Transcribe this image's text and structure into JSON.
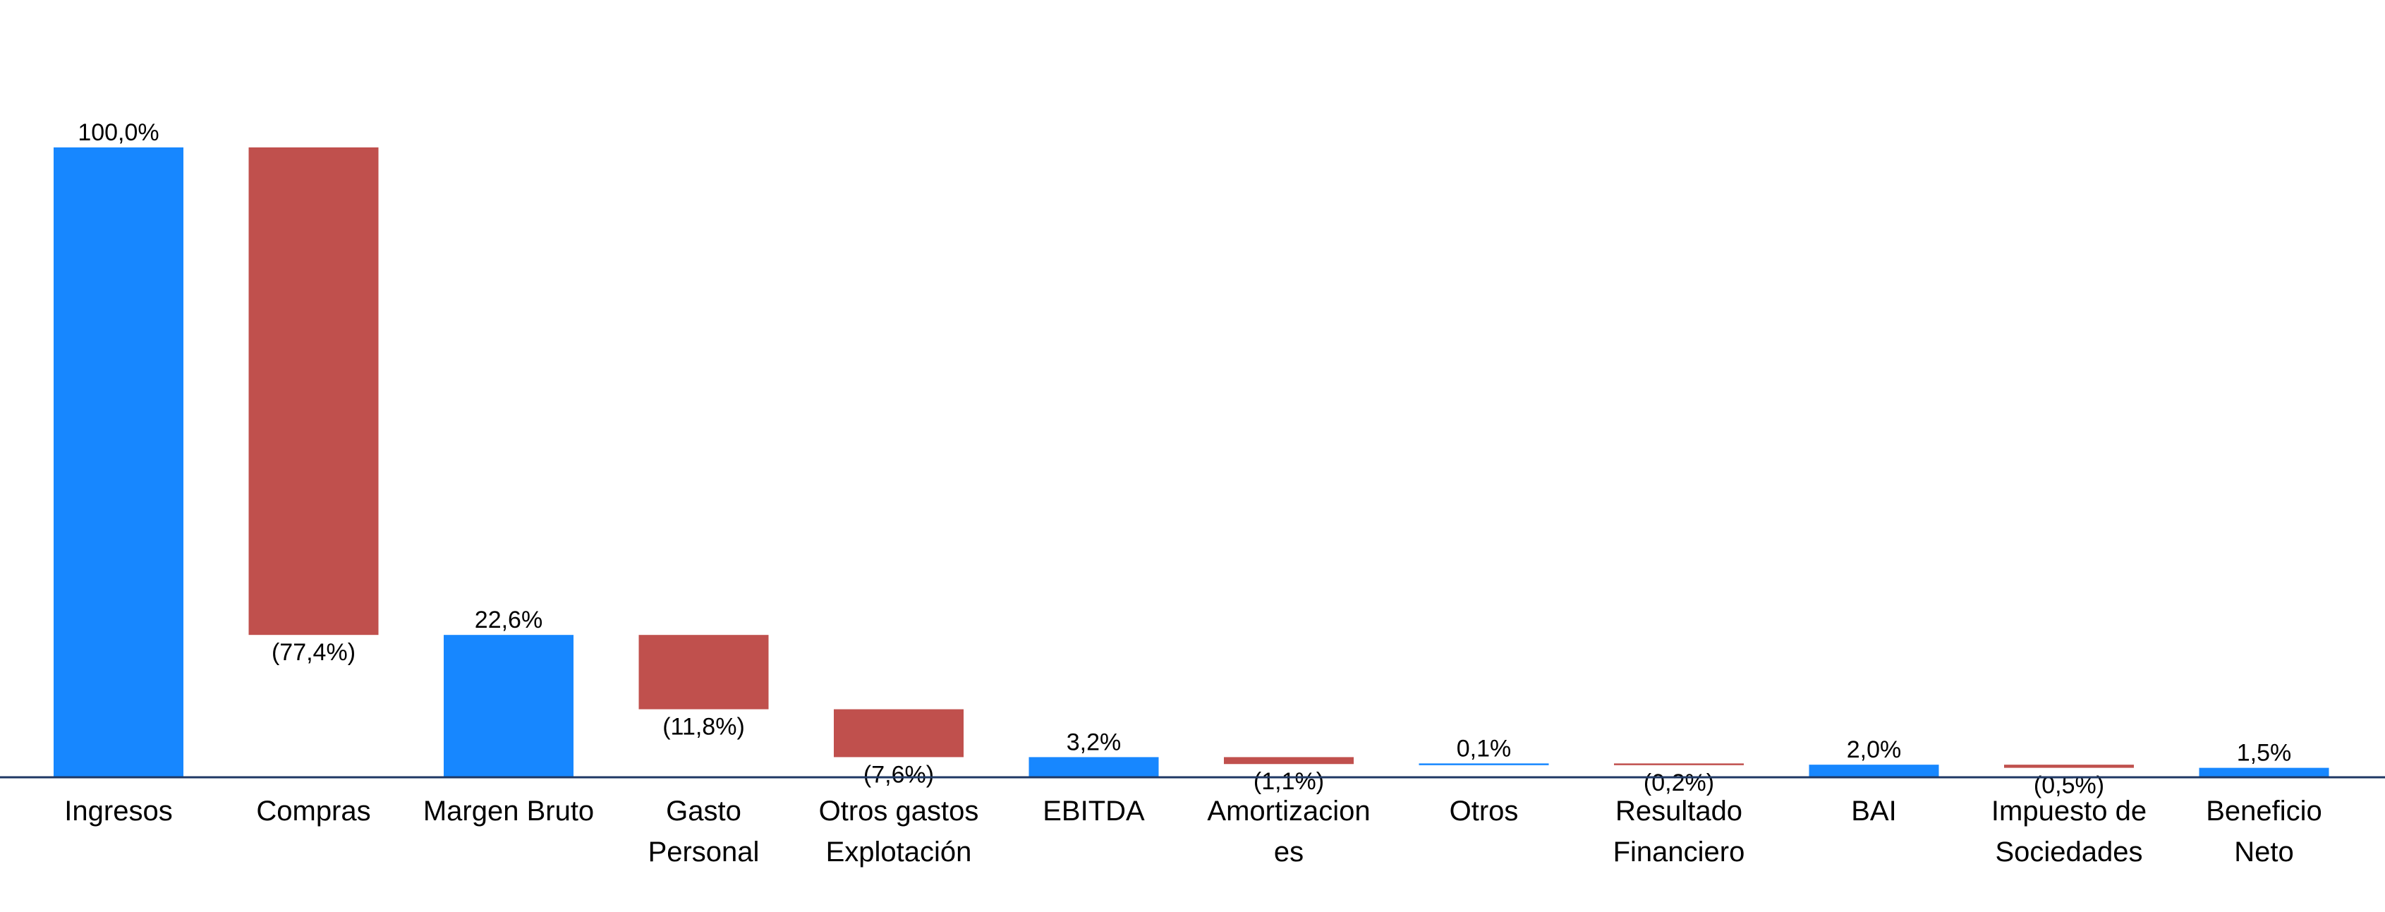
{
  "chart_data": {
    "type": "waterfall",
    "title": "",
    "xlabel": "",
    "ylabel": "",
    "ylim": [
      0,
      100
    ],
    "categories": [
      [
        "Ingresos"
      ],
      [
        "Compras"
      ],
      [
        "Margen Bruto"
      ],
      [
        "Gasto",
        "Personal"
      ],
      [
        "Otros gastos",
        "Explotación"
      ],
      [
        "EBITDA"
      ],
      [
        "Amortizacion",
        "es"
      ],
      [
        "Otros"
      ],
      [
        "Resultado",
        "Financiero"
      ],
      [
        "BAI"
      ],
      [
        "Impuesto de",
        "Sociedades"
      ],
      [
        "Beneficio",
        "Neto"
      ]
    ],
    "bars": [
      {
        "kind": "total",
        "value": 100.0,
        "label": "100,0%"
      },
      {
        "kind": "change",
        "value": -77.4,
        "label": "(77,4%)"
      },
      {
        "kind": "total",
        "value": 22.6,
        "label": "22,6%"
      },
      {
        "kind": "change",
        "value": -11.8,
        "label": "(11,8%)"
      },
      {
        "kind": "change",
        "value": -7.6,
        "label": "(7,6%)"
      },
      {
        "kind": "total",
        "value": 3.2,
        "label": "3,2%"
      },
      {
        "kind": "change",
        "value": -1.1,
        "label": "(1,1%)"
      },
      {
        "kind": "change",
        "value": 0.1,
        "label": "0,1%"
      },
      {
        "kind": "change",
        "value": -0.2,
        "label": "(0,2%)"
      },
      {
        "kind": "total",
        "value": 2.0,
        "label": "2,0%"
      },
      {
        "kind": "change",
        "value": -0.5,
        "label": "(0,5%)"
      },
      {
        "kind": "total",
        "value": 1.5,
        "label": "1,5%"
      }
    ],
    "colors": {
      "total": "#1787FF",
      "negative": "#C0504D",
      "positive": "#1787FF",
      "axis": "#1F3864"
    },
    "grid": false,
    "legend": "none"
  }
}
